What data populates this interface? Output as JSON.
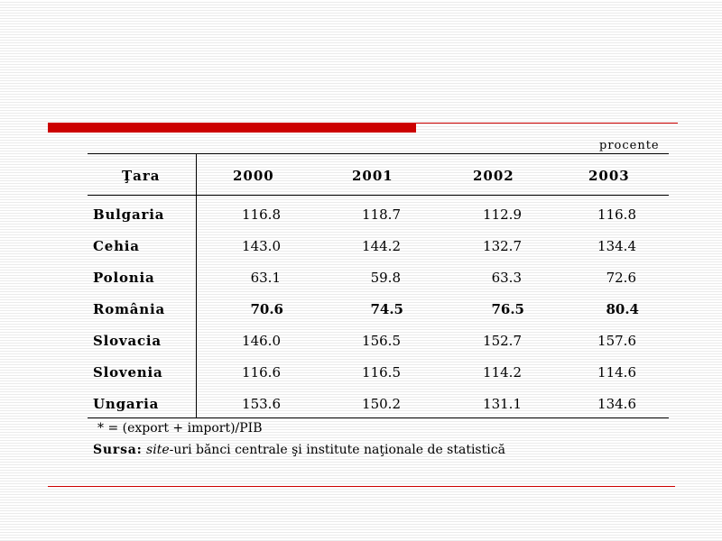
{
  "unit_label": "procente",
  "table": {
    "header_country": "Ţara",
    "years": [
      "2000",
      "2001",
      "2002",
      "2003"
    ],
    "rows": [
      {
        "country": "Bulgaria",
        "values": [
          "116.8",
          "118.7",
          "112.9",
          "116.8"
        ]
      },
      {
        "country": "Cehia",
        "values": [
          "143.0",
          "144.2",
          "132.7",
          "134.4"
        ]
      },
      {
        "country": "Polonia",
        "values": [
          "63.1",
          "59.8",
          "63.3",
          "72.6"
        ]
      },
      {
        "country": "România",
        "values": [
          "70.6",
          "74.5",
          "76.5",
          "80.4"
        ],
        "bold": true
      },
      {
        "country": "Slovacia",
        "values": [
          "146.0",
          "156.5",
          "152.7",
          "157.6"
        ]
      },
      {
        "country": "Slovenia",
        "values": [
          "116.6",
          "116.5",
          "114.2",
          "114.6"
        ]
      },
      {
        "country": "Ungaria",
        "values": [
          "153.6",
          "150.2",
          "131.1",
          "134.6"
        ]
      }
    ]
  },
  "footnote": "* = (export + import)/PIB",
  "source": {
    "label": "Sursa:",
    "italic": "site",
    "rest": "-uri bănci centrale şi institute naţionale de statistică"
  },
  "colors": {
    "accent": "#cc0000"
  }
}
